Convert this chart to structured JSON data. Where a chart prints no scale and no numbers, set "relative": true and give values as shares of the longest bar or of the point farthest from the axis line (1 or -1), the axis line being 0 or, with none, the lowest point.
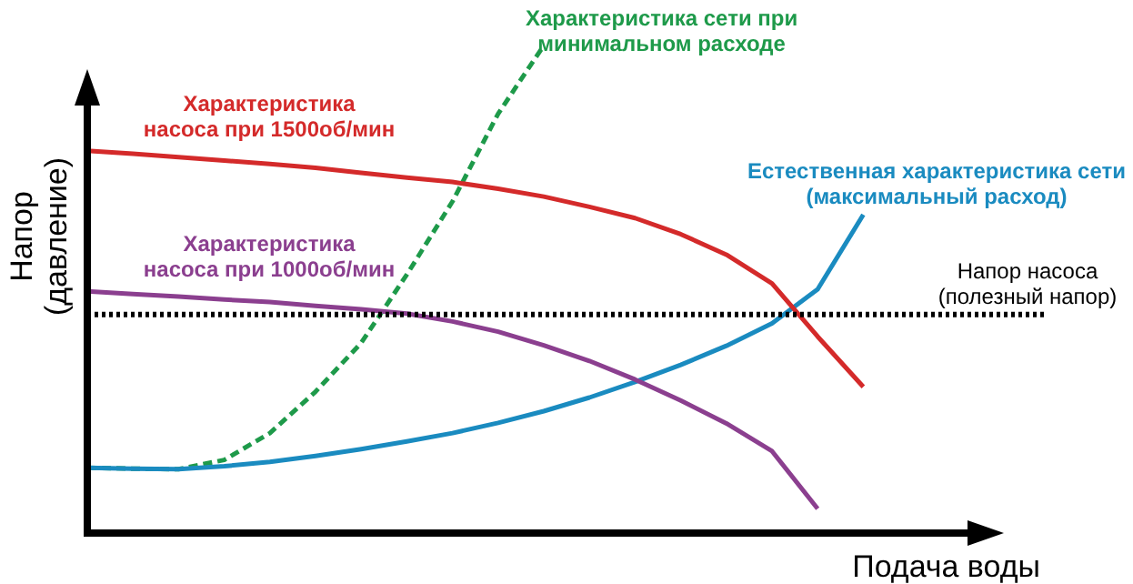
{
  "chart_data": {
    "type": "line",
    "relative": true,
    "xlabel": "Подача воды",
    "ylabel": "Напор (давление)",
    "grid": false,
    "legend": false,
    "marker": "none",
    "categories": [
      null,
      null,
      null,
      null,
      null,
      null,
      null,
      null,
      null,
      null,
      null,
      null,
      null,
      null,
      null,
      null,
      null,
      null,
      null,
      null,
      null
    ],
    "series": [
      {
        "name": "Характеристика\nнасоса при 1500об/мин",
        "color": "#d42a2a",
        "line_style": "solid",
        "values": [
          0.784,
          0.778,
          0.771,
          0.764,
          0.757,
          0.749,
          0.739,
          0.729,
          0.72,
          0.706,
          0.69,
          0.669,
          0.646,
          0.613,
          0.571,
          0.512,
          0.403,
          0.3,
          null,
          null,
          null
        ]
      },
      {
        "name": "Характеристика\nнасоса при 1000об/мин",
        "color": "#8b3f8f",
        "line_style": "solid",
        "values": [
          0.496,
          0.49,
          0.485,
          0.479,
          0.474,
          0.466,
          0.459,
          0.45,
          0.434,
          0.413,
          0.385,
          0.353,
          0.315,
          0.272,
          0.225,
          0.168,
          0.05,
          null,
          null,
          null,
          null
        ]
      },
      {
        "name": "Естественная характеристика сети\n(максимальный расход)",
        "color": "#1a8bc0",
        "line_style": "solid",
        "values": [
          0.134,
          0.132,
          0.131,
          0.137,
          0.146,
          0.158,
          0.172,
          0.188,
          0.205,
          0.226,
          0.25,
          0.278,
          0.31,
          0.345,
          0.384,
          0.43,
          0.5,
          0.653,
          null,
          null,
          null
        ]
      },
      {
        "name": "Характеристика сети при\nминимальном расходе",
        "color": "#1e9a4a",
        "line_style": "dashed",
        "values": [
          0.134,
          0.132,
          0.131,
          0.15,
          0.205,
          0.29,
          0.39,
          0.53,
          0.68,
          0.86,
          1.0,
          null,
          null,
          null,
          null,
          null,
          null,
          null,
          null,
          null,
          null
        ]
      }
    ],
    "ref_lines": [
      {
        "axis": "y",
        "value": 0.448,
        "label": "Напор насоса\n(полезный напор)",
        "color": "#000000",
        "line_style": "dotted"
      }
    ]
  }
}
